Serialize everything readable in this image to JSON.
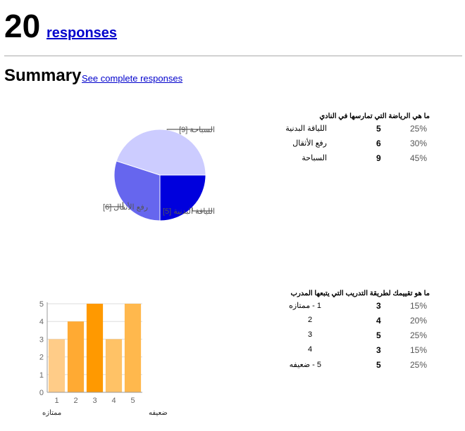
{
  "header": {
    "count": "20",
    "responses_label": "responses",
    "summary_title": "Summary",
    "complete_link": "See complete responses"
  },
  "pie_question": {
    "title": "ما هي الرياضة التي تمارسها في النادي",
    "rows": [
      {
        "label": "اللياقة البدنية",
        "count": "5",
        "pct": "25%"
      },
      {
        "label": "رفع الأثقال",
        "count": "6",
        "pct": "30%"
      },
      {
        "label": "السباحة",
        "count": "9",
        "pct": "45%"
      }
    ]
  },
  "bar_question": {
    "title": "ما هو تقييمك لطريقة التدريب التي يتبعها المدرب",
    "rows": [
      {
        "label": "1 - ممتازه",
        "count": "3",
        "pct": "15%"
      },
      {
        "label": "2",
        "count": "4",
        "pct": "20%"
      },
      {
        "label": "3",
        "count": "5",
        "pct": "25%"
      },
      {
        "label": "4",
        "count": "3",
        "pct": "15%"
      },
      {
        "label": "5 - ضعيفه",
        "count": "5",
        "pct": "25%"
      }
    ],
    "low_label": "ممتازه",
    "high_label": "ضعيفه"
  },
  "chart_data": [
    {
      "type": "pie",
      "slices": [
        {
          "label": "اللياقة البدنية [5]",
          "value": 5,
          "color": "#0000dd"
        },
        {
          "label": "رفع الأثقال [6]",
          "value": 6,
          "color": "#6666ee"
        },
        {
          "label": "السباحة [9]",
          "value": 9,
          "color": "#ccccff"
        }
      ]
    },
    {
      "type": "bar",
      "categories": [
        "1",
        "2",
        "3",
        "4",
        "5"
      ],
      "values": [
        3,
        4,
        5,
        3,
        5
      ],
      "colors": [
        "#ffcc88",
        "#ffaa33",
        "#ff9900",
        "#ffc266",
        "#ffb84d"
      ],
      "ylim": [
        0,
        5
      ],
      "yticks": [
        "0",
        "1",
        "2",
        "3",
        "4",
        "5"
      ]
    }
  ]
}
